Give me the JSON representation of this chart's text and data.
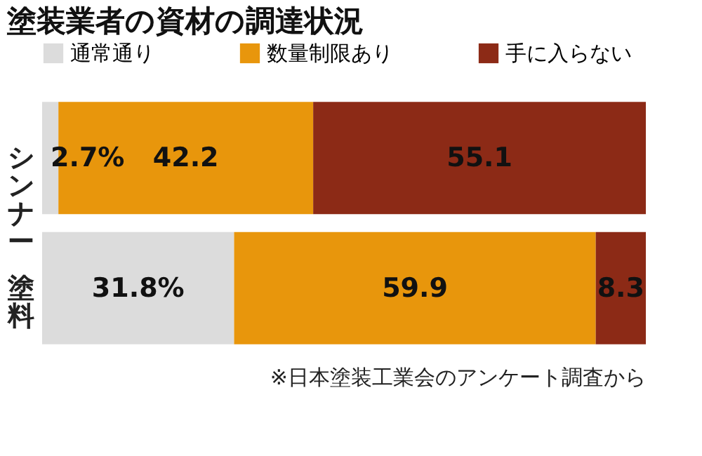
{
  "chart_data": {
    "type": "bar",
    "orientation": "horizontal",
    "stacked": true,
    "title": "塗装業者の資材の調達状況",
    "categories": [
      "シンナー",
      "塗料"
    ],
    "series": [
      {
        "name": "通常通り",
        "color": "#dcdcdc",
        "values": [
          2.7,
          31.8
        ],
        "value_labels": [
          "2.7%",
          "31.8%"
        ]
      },
      {
        "name": "数量制限あり",
        "color": "#e8960c",
        "values": [
          42.2,
          59.9
        ],
        "value_labels": [
          "42.2",
          "59.9"
        ]
      },
      {
        "name": "手に入らない",
        "color": "#8c2a16",
        "values": [
          55.1,
          8.3
        ],
        "value_labels": [
          "55.1",
          "8.3"
        ]
      }
    ],
    "xlim": [
      0,
      100
    ],
    "tick_labels": "y",
    "legend": "top",
    "annotations": [
      "※日本塗装工業会のアンケート調査から"
    ]
  }
}
